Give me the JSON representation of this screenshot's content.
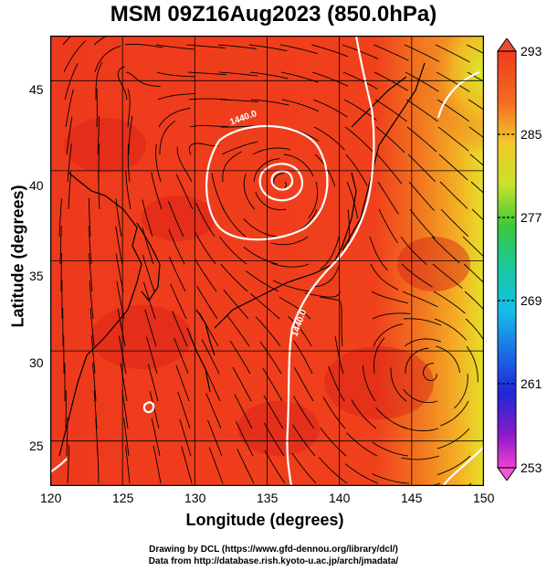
{
  "title": "MSM 09Z16Aug2023 (850.0hPa)",
  "axes": {
    "xlabel": "Longitude (degrees)",
    "ylabel": "Latitude  (degrees)",
    "x_ticks": [
      "120",
      "125",
      "130",
      "135",
      "140",
      "145",
      "150"
    ],
    "y_ticks": [
      "45",
      "40",
      "35",
      "30",
      "25"
    ],
    "x_range": [
      120,
      150
    ],
    "y_range": [
      22.5,
      47.5
    ]
  },
  "colorbar": {
    "ticks": [
      "293",
      "285",
      "277",
      "269",
      "261",
      "253"
    ],
    "range": [
      253,
      293
    ]
  },
  "contours": {
    "label_north": "1440.0",
    "label_south": "1440.0"
  },
  "credits": {
    "line1": "Drawing by DCL (https://www.gfd-dennou.org/library/dcl/)",
    "line2": "Data from http://database.rish.kyoto-u.ac.jp/arch/jmadata/"
  },
  "colors": {
    "field_main": "#f03c1c",
    "field_warm": "#e4221a",
    "contour": "#ffffff",
    "coast": "#000000"
  }
}
